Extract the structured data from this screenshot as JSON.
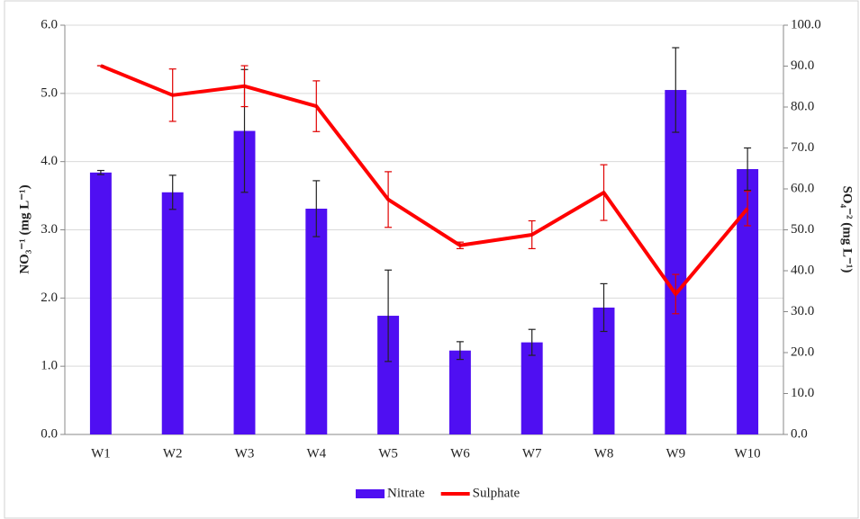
{
  "chart_data": {
    "type": "bar-line",
    "y_label": "NO₃⁻¹ (mg L⁻¹)",
    "y2_label": "SO₄⁻² (mg L⁻¹)",
    "categories": [
      "W1",
      "W2",
      "W3",
      "W4",
      "W5",
      "W6",
      "W7",
      "W8",
      "W9",
      "W10"
    ],
    "series": [
      {
        "name": "Nitrate",
        "type": "bar",
        "color": "#4f0ff2",
        "values": [
          3.84,
          3.55,
          4.45,
          3.31,
          1.74,
          1.23,
          1.35,
          1.86,
          5.05,
          3.89
        ],
        "errors": [
          0.03,
          0.25,
          0.9,
          0.41,
          0.67,
          0.13,
          0.19,
          0.35,
          0.62,
          0.31
        ],
        "error_color": "#222222"
      },
      {
        "name": "Sulphate",
        "type": "line",
        "axis": "y2",
        "color": "#ff0000",
        "values": [
          90.1,
          82.9,
          85.1,
          80.2,
          57.4,
          46.2,
          48.8,
          59.1,
          34.3,
          55.2
        ],
        "errors": [
          0,
          6.4,
          5,
          6.2,
          6.8,
          0.8,
          3.4,
          6.8,
          4.8,
          4.2
        ],
        "error_color": "#e00000"
      }
    ],
    "ylim": [
      0,
      6
    ],
    "yticks": [
      {
        "value": 0,
        "label": "0.0"
      },
      {
        "value": 1,
        "label": "1.0"
      },
      {
        "value": 2,
        "label": "2.0"
      },
      {
        "value": 3,
        "label": "3.0"
      },
      {
        "value": 4,
        "label": "4.0"
      },
      {
        "value": 5,
        "label": "5.0"
      },
      {
        "value": 6,
        "label": "6.0"
      }
    ],
    "y2lim": [
      0,
      100
    ],
    "y2ticks": [
      {
        "value": 0,
        "label": "0.0"
      },
      {
        "value": 10,
        "label": "10.0"
      },
      {
        "value": 20,
        "label": "20.0"
      },
      {
        "value": 30,
        "label": "30.0"
      },
      {
        "value": 40,
        "label": "40.0"
      },
      {
        "value": 50,
        "label": "50.0"
      },
      {
        "value": 60,
        "label": "60.0"
      },
      {
        "value": 70,
        "label": "70.0"
      },
      {
        "value": 80,
        "label": "80.0"
      },
      {
        "value": 90,
        "label": "90.0"
      },
      {
        "value": 100,
        "label": "100.0"
      }
    ],
    "grid": true,
    "legend": "bottom"
  }
}
